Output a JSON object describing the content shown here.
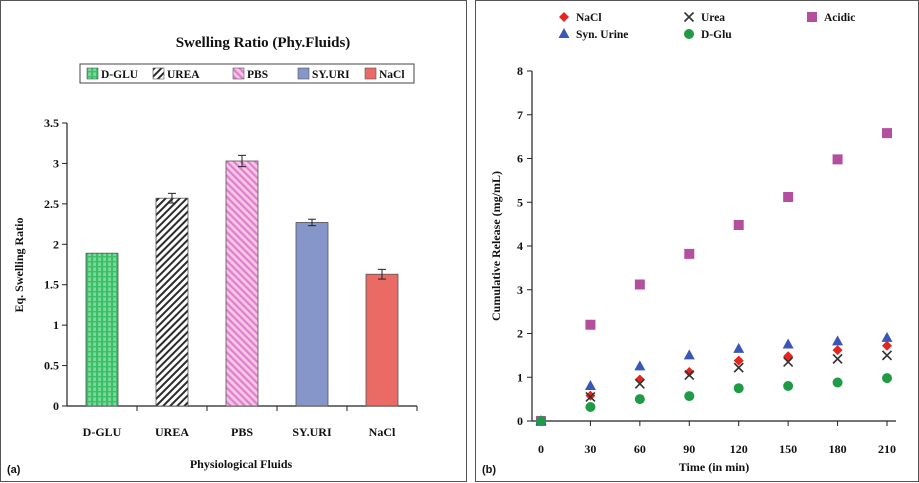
{
  "panels": [
    {
      "panel_label": "(a)",
      "legend_title": "Swelling Ratio (Phy.Fluids)",
      "chart_data": {
        "type": "bar",
        "title": "Swelling Ratio (Phy.Fluids)",
        "xlabel": "Physiological Fluids",
        "ylabel": "Eq. Swelling Ratio",
        "categories": [
          "D-GLU",
          "UREA",
          "PBS",
          "SY.URI",
          "NaCl"
        ],
        "legend_labels": [
          "D-GLU",
          "UREA",
          "PBS",
          "SY.URI",
          "NaCl"
        ],
        "values": [
          1.89,
          2.57,
          3.03,
          2.27,
          1.63
        ],
        "errors": [
          0.0,
          0.06,
          0.07,
          0.04,
          0.06
        ],
        "ylim": [
          0,
          3.5
        ],
        "yticks": [
          "0",
          "0.5",
          "1",
          "1.5",
          "2",
          "2.5",
          "3",
          "3.5"
        ],
        "colors": [
          "#3bbf6a",
          "#2b2b2b",
          "#e080c8",
          "#8796c8",
          "#ea6b65"
        ],
        "legend": "top",
        "grid": false
      }
    },
    {
      "panel_label": "(b)",
      "chart_data": {
        "type": "scatter",
        "xlabel": "Time (in min)",
        "ylabel": "Cumulative Release (mg/mL)",
        "x": [
          0,
          30,
          60,
          90,
          120,
          150,
          180,
          210
        ],
        "xticks": [
          "0",
          "30",
          "60",
          "90",
          "120",
          "150",
          "180",
          "210"
        ],
        "yticks": [
          "0",
          "1",
          "2",
          "3",
          "4",
          "5",
          "6",
          "7",
          "8"
        ],
        "xlim": [
          0,
          210
        ],
        "ylim": [
          0,
          8
        ],
        "legend": "top",
        "grid": false,
        "series": [
          {
            "name": "NaCl",
            "marker": "diamond",
            "color": "#e3261f",
            "values": [
              0,
              0.58,
              0.95,
              1.12,
              1.38,
              1.48,
              1.62,
              1.72
            ]
          },
          {
            "name": "Urea",
            "marker": "x",
            "color": "#333333",
            "values": [
              0,
              0.55,
              0.85,
              1.05,
              1.22,
              1.35,
              1.42,
              1.5
            ]
          },
          {
            "name": "Acidic",
            "marker": "square",
            "color": "#b44fa0",
            "values": [
              0,
              2.2,
              3.12,
              3.82,
              4.48,
              5.12,
              5.98,
              6.58
            ]
          },
          {
            "name": "Syn. Urine",
            "marker": "triangle",
            "color": "#3a57b8",
            "values": [
              0,
              0.8,
              1.25,
              1.5,
              1.65,
              1.75,
              1.82,
              1.9
            ]
          },
          {
            "name": "D-Glu",
            "marker": "circle",
            "color": "#1f9a45",
            "values": [
              0,
              0.32,
              0.5,
              0.57,
              0.75,
              0.8,
              0.88,
              0.98
            ]
          }
        ]
      }
    }
  ]
}
